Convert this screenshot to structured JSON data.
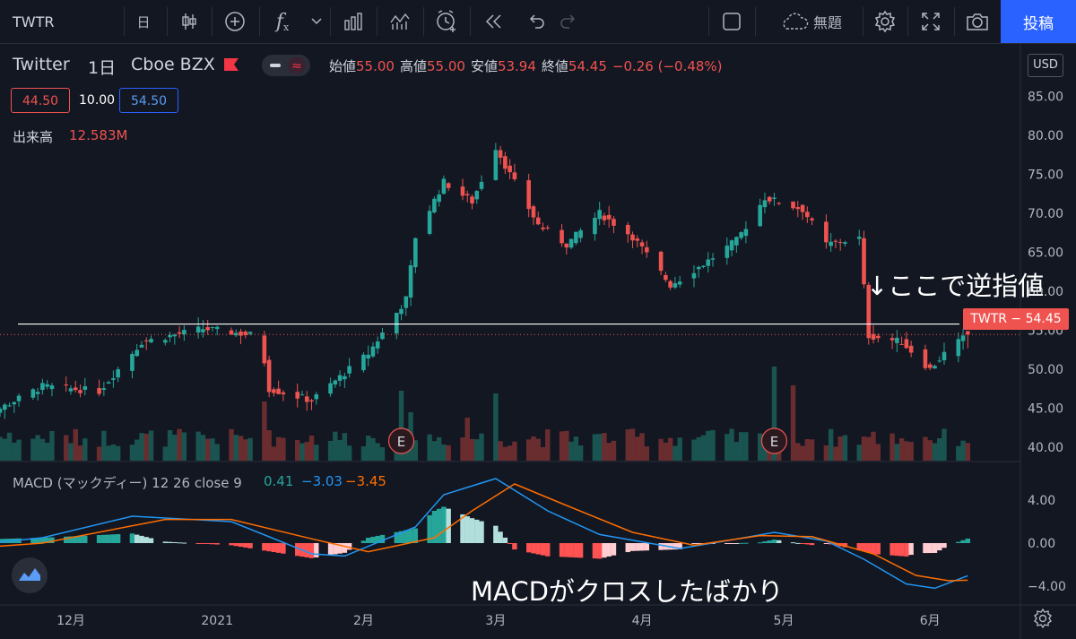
{
  "toolbar": {
    "symbol": "TWTR",
    "interval": "日",
    "fx": "f",
    "layout_name": "無題",
    "post_label": "投稿",
    "icons": [
      "candles-icon",
      "add-indicator-icon",
      "fx-icon",
      "chevron-down-icon",
      "bar-style-icon",
      "template-icon",
      "alert-clock-icon",
      "replay-icon",
      "undo-icon",
      "redo-icon",
      "layout-square-icon",
      "cloud-icon",
      "gear-icon",
      "fullscreen-icon",
      "camera-icon"
    ]
  },
  "legend": {
    "name": "Twitter",
    "interval": "1日",
    "exchange": "Cboe BZX",
    "open_label": "始値",
    "open": "55.00",
    "high_label": "高値",
    "high": "55.00",
    "low_label": "安値",
    "low": "53.94",
    "close_label": "終値",
    "close": "54.45",
    "change": "−0.26 (−0.48%)",
    "bid": "44.50",
    "spread": "10.00",
    "ask": "54.50",
    "volume_label": "出来高",
    "volume": "12.583M",
    "macd_label": "MACD (マックディー) 12 26 close 9",
    "macd_hist": "0.41",
    "macd_line": "−3.03",
    "macd_signal": "−3.45",
    "currency": "USD",
    "last_tag": "TWTR − 54.45"
  },
  "annotations": {
    "stop_text": "↓ここで逆指値",
    "macd_text": "MACDがクロスしたばかり"
  },
  "colors": {
    "up": "#26a69a",
    "down": "#ef5350",
    "macd": "#2196f3",
    "signal": "#ff6d00",
    "text": "#b2b5be"
  },
  "chart_data": [
    {
      "type": "candlestick",
      "title": "Twitter 1日 Cboe BZX",
      "y_ticks": [
        "40.00",
        "45.00",
        "50.00",
        "55.00",
        "60.00",
        "65.00",
        "70.00",
        "75.00",
        "80.00",
        "85.00"
      ],
      "ylim": [
        38.5,
        85
      ],
      "x_ticks": [
        {
          "label": "12月",
          "date": "2020-12-01"
        },
        {
          "label": "2021",
          "date": "2021-01-01"
        },
        {
          "label": "2月",
          "date": "2021-02-01"
        },
        {
          "label": "3月",
          "date": "2021-03-01"
        },
        {
          "label": "4月",
          "date": "2021-04-01"
        },
        {
          "label": "5月",
          "date": "2021-05-01"
        },
        {
          "label": "6月",
          "date": "2021-06-01"
        }
      ],
      "stop_line_price": 55.8,
      "last_price": 54.45,
      "earnings_markers": [
        {
          "label": "E",
          "date": "2021-02-09"
        },
        {
          "label": "E",
          "date": "2021-04-29"
        }
      ],
      "segments": [
        {
          "from": "2020-11-09",
          "to": "2020-11-25",
          "start": 42.8,
          "end": 47.8
        },
        {
          "from": "2020-11-25",
          "to": "2020-12-07",
          "start": 47.8,
          "end": 47.2
        },
        {
          "from": "2020-12-07",
          "to": "2020-12-16",
          "start": 47.2,
          "end": 53.5
        },
        {
          "from": "2020-12-16",
          "to": "2020-12-29",
          "start": 53.5,
          "end": 55.2
        },
        {
          "from": "2020-12-29",
          "to": "2021-01-08",
          "start": 55.2,
          "end": 54.4
        },
        {
          "from": "2021-01-08",
          "to": "2021-01-11",
          "start": 54.4,
          "end": 51.0
        },
        {
          "from": "2021-01-11",
          "to": "2021-01-12",
          "start": 51.0,
          "end": 47.5
        },
        {
          "from": "2021-01-12",
          "to": "2021-01-21",
          "start": 47.5,
          "end": 46.0
        },
        {
          "from": "2021-01-21",
          "to": "2021-02-02",
          "start": 46.0,
          "end": 52.0
        },
        {
          "from": "2021-02-02",
          "to": "2021-02-10",
          "start": 52.0,
          "end": 59.0
        },
        {
          "from": "2021-02-10",
          "to": "2021-02-12",
          "start": 59.0,
          "end": 67.0
        },
        {
          "from": "2021-02-12",
          "to": "2021-02-18",
          "start": 67.0,
          "end": 74.0
        },
        {
          "from": "2021-02-18",
          "to": "2021-02-24",
          "start": 74.0,
          "end": 71.5
        },
        {
          "from": "2021-02-24",
          "to": "2021-03-01",
          "start": 71.5,
          "end": 78.5
        },
        {
          "from": "2021-03-01",
          "to": "2021-03-04",
          "start": 78.5,
          "end": 75.0
        },
        {
          "from": "2021-03-04",
          "to": "2021-03-10",
          "start": 75.0,
          "end": 68.5
        },
        {
          "from": "2021-03-10",
          "to": "2021-03-16",
          "start": 68.5,
          "end": 66.0
        },
        {
          "from": "2021-03-16",
          "to": "2021-03-23",
          "start": 66.0,
          "end": 70.0
        },
        {
          "from": "2021-03-23",
          "to": "2021-03-30",
          "start": 70.0,
          "end": 67.0
        },
        {
          "from": "2021-03-30",
          "to": "2021-04-07",
          "start": 67.0,
          "end": 60.8
        },
        {
          "from": "2021-04-07",
          "to": "2021-04-14",
          "start": 60.8,
          "end": 63.5
        },
        {
          "from": "2021-04-14",
          "to": "2021-04-21",
          "start": 63.5,
          "end": 66.5
        },
        {
          "from": "2021-04-21",
          "to": "2021-04-27",
          "start": 66.5,
          "end": 72.0
        },
        {
          "from": "2021-04-27",
          "to": "2021-05-05",
          "start": 72.0,
          "end": 70.5
        },
        {
          "from": "2021-05-05",
          "to": "2021-05-10",
          "start": 70.5,
          "end": 66.0
        },
        {
          "from": "2021-05-10",
          "to": "2021-05-14",
          "start": 66.0,
          "end": 66.5
        },
        {
          "from": "2021-05-14",
          "to": "2021-05-17",
          "start": 66.5,
          "end": 66.8
        },
        {
          "from": "2021-05-17",
          "to": "2021-05-19",
          "start": 66.8,
          "end": 54.3
        },
        {
          "from": "2021-05-19",
          "to": "2021-05-26",
          "start": 54.3,
          "end": 53.5
        },
        {
          "from": "2021-05-26",
          "to": "2021-06-01",
          "start": 53.5,
          "end": 50.0
        },
        {
          "from": "2021-06-01",
          "to": "2021-06-04",
          "start": 50.0,
          "end": 52.0
        },
        {
          "from": "2021-06-04",
          "to": "2021-06-09",
          "start": 52.0,
          "end": 54.45
        }
      ]
    },
    {
      "type": "line",
      "title": "MACD (マックディー) 12 26 close 9",
      "y_ticks": [
        "4.00",
        "0.00",
        "−4.00"
      ],
      "ylim": [
        -5.5,
        6.8
      ],
      "series": [
        {
          "name": "macd",
          "points": [
            {
              "date": "2020-11-09",
              "v": -0.2
            },
            {
              "date": "2020-11-25",
              "v": 0.5
            },
            {
              "date": "2020-12-14",
              "v": 2.5
            },
            {
              "date": "2021-01-04",
              "v": 2.0
            },
            {
              "date": "2021-01-21",
              "v": -1.0
            },
            {
              "date": "2021-01-28",
              "v": -1.2
            },
            {
              "date": "2021-02-12",
              "v": 1.5
            },
            {
              "date": "2021-02-18",
              "v": 4.5
            },
            {
              "date": "2021-03-01",
              "v": 6.0
            },
            {
              "date": "2021-03-12",
              "v": 3.0
            },
            {
              "date": "2021-03-23",
              "v": 0.8
            },
            {
              "date": "2021-04-09",
              "v": -0.5
            },
            {
              "date": "2021-04-20",
              "v": 0.3
            },
            {
              "date": "2021-04-29",
              "v": 1.0
            },
            {
              "date": "2021-05-10",
              "v": 0.2
            },
            {
              "date": "2021-05-18",
              "v": -1.5
            },
            {
              "date": "2021-05-27",
              "v": -3.8
            },
            {
              "date": "2021-06-02",
              "v": -4.2
            },
            {
              "date": "2021-06-09",
              "v": -3.03
            }
          ]
        },
        {
          "name": "signal",
          "points": [
            {
              "date": "2020-11-09",
              "v": -0.5
            },
            {
              "date": "2020-11-25",
              "v": 0.0
            },
            {
              "date": "2020-12-21",
              "v": 2.2
            },
            {
              "date": "2021-01-04",
              "v": 2.2
            },
            {
              "date": "2021-01-21",
              "v": 0.4
            },
            {
              "date": "2021-02-02",
              "v": -0.8
            },
            {
              "date": "2021-02-16",
              "v": 0.5
            },
            {
              "date": "2021-02-24",
              "v": 3.0
            },
            {
              "date": "2021-03-05",
              "v": 5.5
            },
            {
              "date": "2021-03-16",
              "v": 3.5
            },
            {
              "date": "2021-03-30",
              "v": 1.0
            },
            {
              "date": "2021-04-12",
              "v": -0.2
            },
            {
              "date": "2021-04-26",
              "v": 0.7
            },
            {
              "date": "2021-05-07",
              "v": 0.6
            },
            {
              "date": "2021-05-20",
              "v": -1.0
            },
            {
              "date": "2021-05-29",
              "v": -3.0
            },
            {
              "date": "2021-06-05",
              "v": -3.5
            },
            {
              "date": "2021-06-09",
              "v": -3.45
            }
          ]
        }
      ]
    }
  ]
}
